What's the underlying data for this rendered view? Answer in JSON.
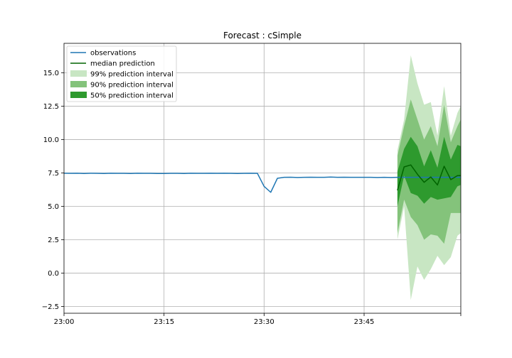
{
  "chart_data": {
    "type": "line",
    "title": "Forecast : cSimple",
    "xlabel": "",
    "ylabel": "",
    "x_tick_labels": [
      "23:00",
      "23:15",
      "23:30",
      "23:45"
    ],
    "x_ticks_minutes": [
      0,
      15,
      30,
      45,
      59.5
    ],
    "xlim_minutes": [
      0,
      59.5
    ],
    "y_ticks": [
      -2.5,
      0.0,
      2.5,
      5.0,
      7.5,
      10.0,
      12.5,
      15.0
    ],
    "y_tick_labels": [
      "−2.5",
      "0.0",
      "2.5",
      "5.0",
      "7.5",
      "10.0",
      "12.5",
      "15.0"
    ],
    "ylim": [
      -3.0,
      17.2
    ],
    "grid": true,
    "legend_position": "top-left",
    "colors": {
      "observations": "#1f77b4",
      "median": "#006400",
      "pi99": "#c8e6c3",
      "pi90": "#84c37b",
      "pi50": "#2e9a2e"
    },
    "legend": [
      {
        "label": "observations",
        "kind": "line",
        "color": "#1f77b4"
      },
      {
        "label": "median prediction",
        "kind": "line",
        "color": "#006400"
      },
      {
        "label": "99% prediction interval",
        "kind": "patch",
        "color": "#c8e6c3"
      },
      {
        "label": "90% prediction interval",
        "kind": "patch",
        "color": "#84c37b"
      },
      {
        "label": "50% prediction interval",
        "kind": "patch",
        "color": "#2e9a2e"
      }
    ],
    "series": [
      {
        "name": "observations",
        "x": [
          0,
          1,
          2,
          3,
          4,
          5,
          6,
          7,
          8,
          9,
          10,
          11,
          12,
          13,
          14,
          15,
          16,
          17,
          18,
          19,
          20,
          21,
          22,
          23,
          24,
          25,
          26,
          27,
          28,
          29,
          30,
          31,
          32,
          33,
          34,
          35,
          36,
          37,
          38,
          39,
          40,
          41,
          42,
          43,
          44,
          45,
          46,
          47,
          48,
          49,
          50,
          51,
          52,
          53,
          54,
          55,
          56,
          57,
          58,
          59,
          59.5
        ],
        "y": [
          7.48,
          7.47,
          7.48,
          7.46,
          7.48,
          7.47,
          7.46,
          7.48,
          7.47,
          7.47,
          7.46,
          7.48,
          7.47,
          7.47,
          7.46,
          7.46,
          7.47,
          7.47,
          7.46,
          7.48,
          7.47,
          7.47,
          7.48,
          7.47,
          7.48,
          7.47,
          7.46,
          7.47,
          7.48,
          7.47,
          6.5,
          6.05,
          7.1,
          7.17,
          7.18,
          7.16,
          7.17,
          7.18,
          7.17,
          7.17,
          7.19,
          7.17,
          7.18,
          7.17,
          7.17,
          7.17,
          7.17,
          7.16,
          7.17,
          7.16,
          7.17,
          7.17,
          7.17,
          7.17,
          7.17,
          7.17,
          7.17,
          7.17,
          7.17,
          7.17,
          7.17
        ]
      },
      {
        "name": "median prediction",
        "x": [
          50,
          51,
          52,
          53,
          54,
          55,
          56,
          57,
          58,
          59,
          59.5
        ],
        "y": [
          6.2,
          7.95,
          8.1,
          7.4,
          6.8,
          7.2,
          6.6,
          8.0,
          7.0,
          7.3,
          7.3
        ]
      }
    ],
    "intervals": [
      {
        "name": "99% prediction interval",
        "x": [
          50,
          51,
          52,
          53,
          54,
          55,
          56,
          57,
          58,
          59,
          59.5
        ],
        "low": [
          2.5,
          5.0,
          -2.0,
          0.5,
          -0.5,
          0.3,
          1.3,
          0.6,
          1.2,
          2.8,
          3.0
        ],
        "high": [
          9.2,
          11.5,
          16.3,
          14.2,
          12.6,
          12.8,
          10.3,
          14.0,
          10.3,
          12.0,
          12.5
        ]
      },
      {
        "name": "90% prediction interval",
        "x": [
          50,
          51,
          52,
          53,
          54,
          55,
          56,
          57,
          58,
          59,
          59.5
        ],
        "low": [
          3.0,
          5.5,
          4.2,
          3.6,
          2.5,
          2.9,
          2.8,
          2.2,
          4.5,
          4.5,
          4.5
        ],
        "high": [
          8.8,
          11.0,
          13.0,
          11.5,
          10.0,
          11.0,
          9.5,
          12.6,
          9.8,
          11.0,
          11.5
        ]
      },
      {
        "name": "50% prediction interval",
        "x": [
          50,
          51,
          52,
          53,
          54,
          55,
          56,
          57,
          58,
          59,
          59.5
        ],
        "low": [
          5.0,
          7.3,
          6.0,
          5.8,
          5.2,
          5.7,
          5.5,
          5.6,
          5.7,
          6.5,
          6.6
        ],
        "high": [
          7.6,
          9.3,
          10.2,
          9.5,
          8.0,
          9.2,
          7.9,
          10.2,
          8.5,
          9.6,
          9.5
        ]
      }
    ]
  }
}
